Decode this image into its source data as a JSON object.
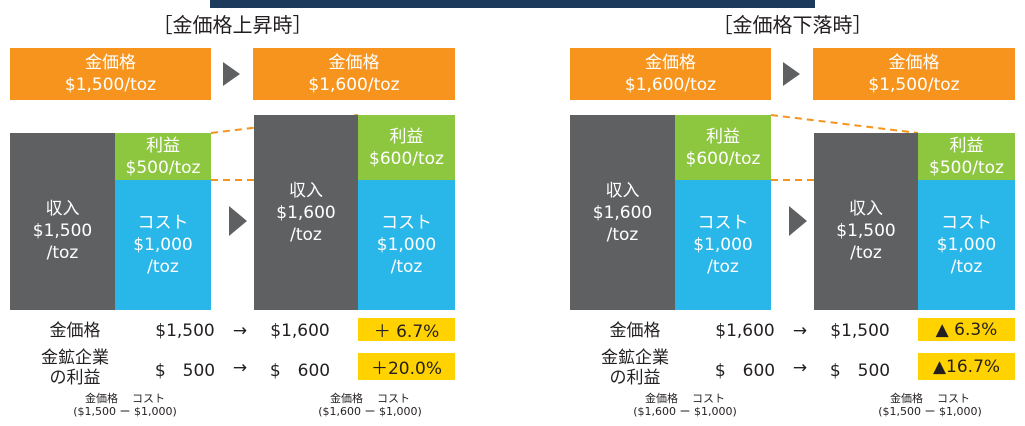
{
  "panels": [
    {
      "title": "［金価格上昇時］",
      "price_from": [
        "金価格",
        "$1,500/toz"
      ],
      "price_to": [
        "金価格",
        "$1,600/toz"
      ],
      "before": {
        "revenue": [
          "収入",
          "$1,500",
          "/toz"
        ],
        "profit": [
          "利益",
          "$500/toz"
        ],
        "cost": [
          "コスト",
          "$1,000",
          "/toz"
        ]
      },
      "after": {
        "revenue": [
          "収入",
          "$1,600",
          "/toz"
        ],
        "profit": [
          "利益",
          "$600/toz"
        ],
        "cost": [
          "コスト",
          "$1,000",
          "/toz"
        ]
      },
      "rows": [
        {
          "label": [
            "金価格"
          ],
          "from": "$1,500",
          "arrow": "→",
          "to": "$1,600",
          "change": "＋ 6.7%"
        },
        {
          "label": [
            "金鉱企業",
            "の利益"
          ],
          "from": "$　500",
          "arrow": "→",
          "to": "$　600",
          "change": "＋20.0%"
        }
      ],
      "footnotes": [
        {
          "labels": [
            "金価格",
            "コスト"
          ],
          "formula": "($1,500 ー $1,000)"
        },
        {
          "labels": [
            "金価格",
            "コスト"
          ],
          "formula": "($1,600 ー $1,000)"
        }
      ]
    },
    {
      "title": "［金価格下落時］",
      "price_from": [
        "金価格",
        "$1,600/toz"
      ],
      "price_to": [
        "金価格",
        "$1,500/toz"
      ],
      "before": {
        "revenue": [
          "収入",
          "$1,600",
          "/toz"
        ],
        "profit": [
          "利益",
          "$600/toz"
        ],
        "cost": [
          "コスト",
          "$1,000",
          "/toz"
        ]
      },
      "after": {
        "revenue": [
          "収入",
          "$1,500",
          "/toz"
        ],
        "profit": [
          "利益",
          "$500/toz"
        ],
        "cost": [
          "コスト",
          "$1,000",
          "/toz"
        ]
      },
      "rows": [
        {
          "label": [
            "金価格"
          ],
          "from": "$1,600",
          "arrow": "→",
          "to": "$1,500",
          "change": "▲ 6.3%"
        },
        {
          "label": [
            "金鉱企業",
            "の利益"
          ],
          "from": "$　600",
          "arrow": "→",
          "to": "$　500",
          "change": "▲16.7%"
        }
      ],
      "footnotes": [
        {
          "labels": [
            "金価格",
            "コスト"
          ],
          "formula": "($1,600 ー $1,000)"
        },
        {
          "labels": [
            "金価格",
            "コスト"
          ],
          "formula": "($1,500 ー $1,000)"
        }
      ]
    }
  ]
}
